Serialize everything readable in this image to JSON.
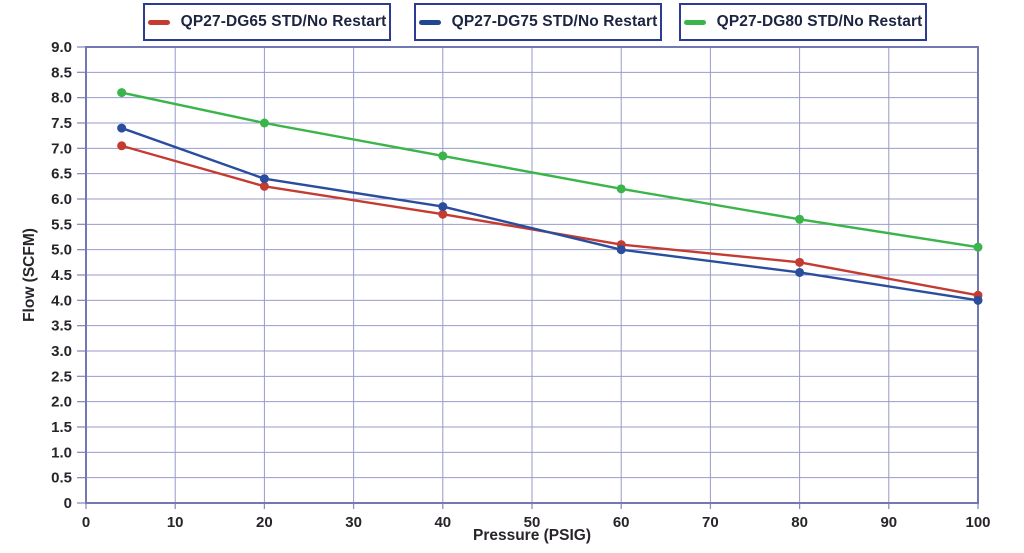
{
  "legend": {
    "items": [
      {
        "label": "QP27-DG65 STD/No Restart",
        "color": "#c43b32"
      },
      {
        "label": "QP27-DG75 STD/No Restart",
        "color": "#204696"
      },
      {
        "label": "QP27-DG80 STD/No Restart",
        "color": "#3bb54a"
      }
    ]
  },
  "chart_data": {
    "type": "line",
    "x": [
      4,
      20,
      40,
      60,
      80,
      100
    ],
    "series": [
      {
        "name": "QP27-DG65 STD/No Restart",
        "color": "#c43b32",
        "values": [
          7.05,
          6.25,
          5.7,
          5.1,
          4.75,
          4.1
        ]
      },
      {
        "name": "QP27-DG75 STD/No Restart",
        "color": "#2a4d9e",
        "values": [
          7.4,
          6.4,
          5.85,
          5.0,
          4.55,
          4.0
        ]
      },
      {
        "name": "QP27-DG80 STD/No Restart",
        "color": "#3bb54a",
        "values": [
          8.1,
          7.5,
          6.85,
          6.2,
          5.6,
          5.05
        ]
      }
    ],
    "xlabel": "Pressure (PSIG)",
    "ylabel": "Flow (SCFM)",
    "xlim": [
      0,
      100
    ],
    "ylim": [
      0,
      9
    ],
    "x_ticks": [
      0,
      10,
      20,
      30,
      40,
      50,
      60,
      70,
      80,
      90,
      100
    ],
    "x_tick_labels": [
      "0",
      "10",
      "20",
      "30",
      "40",
      "50",
      "60",
      "70",
      "80",
      "90",
      "100"
    ],
    "y_ticks": [
      0,
      0.5,
      1.0,
      1.5,
      2.0,
      2.5,
      3.0,
      3.5,
      4.0,
      4.5,
      5.0,
      5.5,
      6.0,
      6.5,
      7.0,
      7.5,
      8.0,
      8.5,
      9.0
    ],
    "y_tick_labels": [
      "0",
      "0.5",
      "1.0",
      "1.5",
      "2.0",
      "2.5",
      "3.0",
      "3.5",
      "4.0",
      "4.5",
      "5.0",
      "5.5",
      "6.0",
      "6.5",
      "7.0",
      "7.5",
      "8.0",
      "8.5",
      "9.0"
    ],
    "grid": true,
    "legend_position": "top",
    "colors": {
      "grid": "#989bcb",
      "plot_border": "#7478b2",
      "tick": "#8a8dc0",
      "legend_border": "#2d3a94",
      "text": "#28242a"
    }
  }
}
